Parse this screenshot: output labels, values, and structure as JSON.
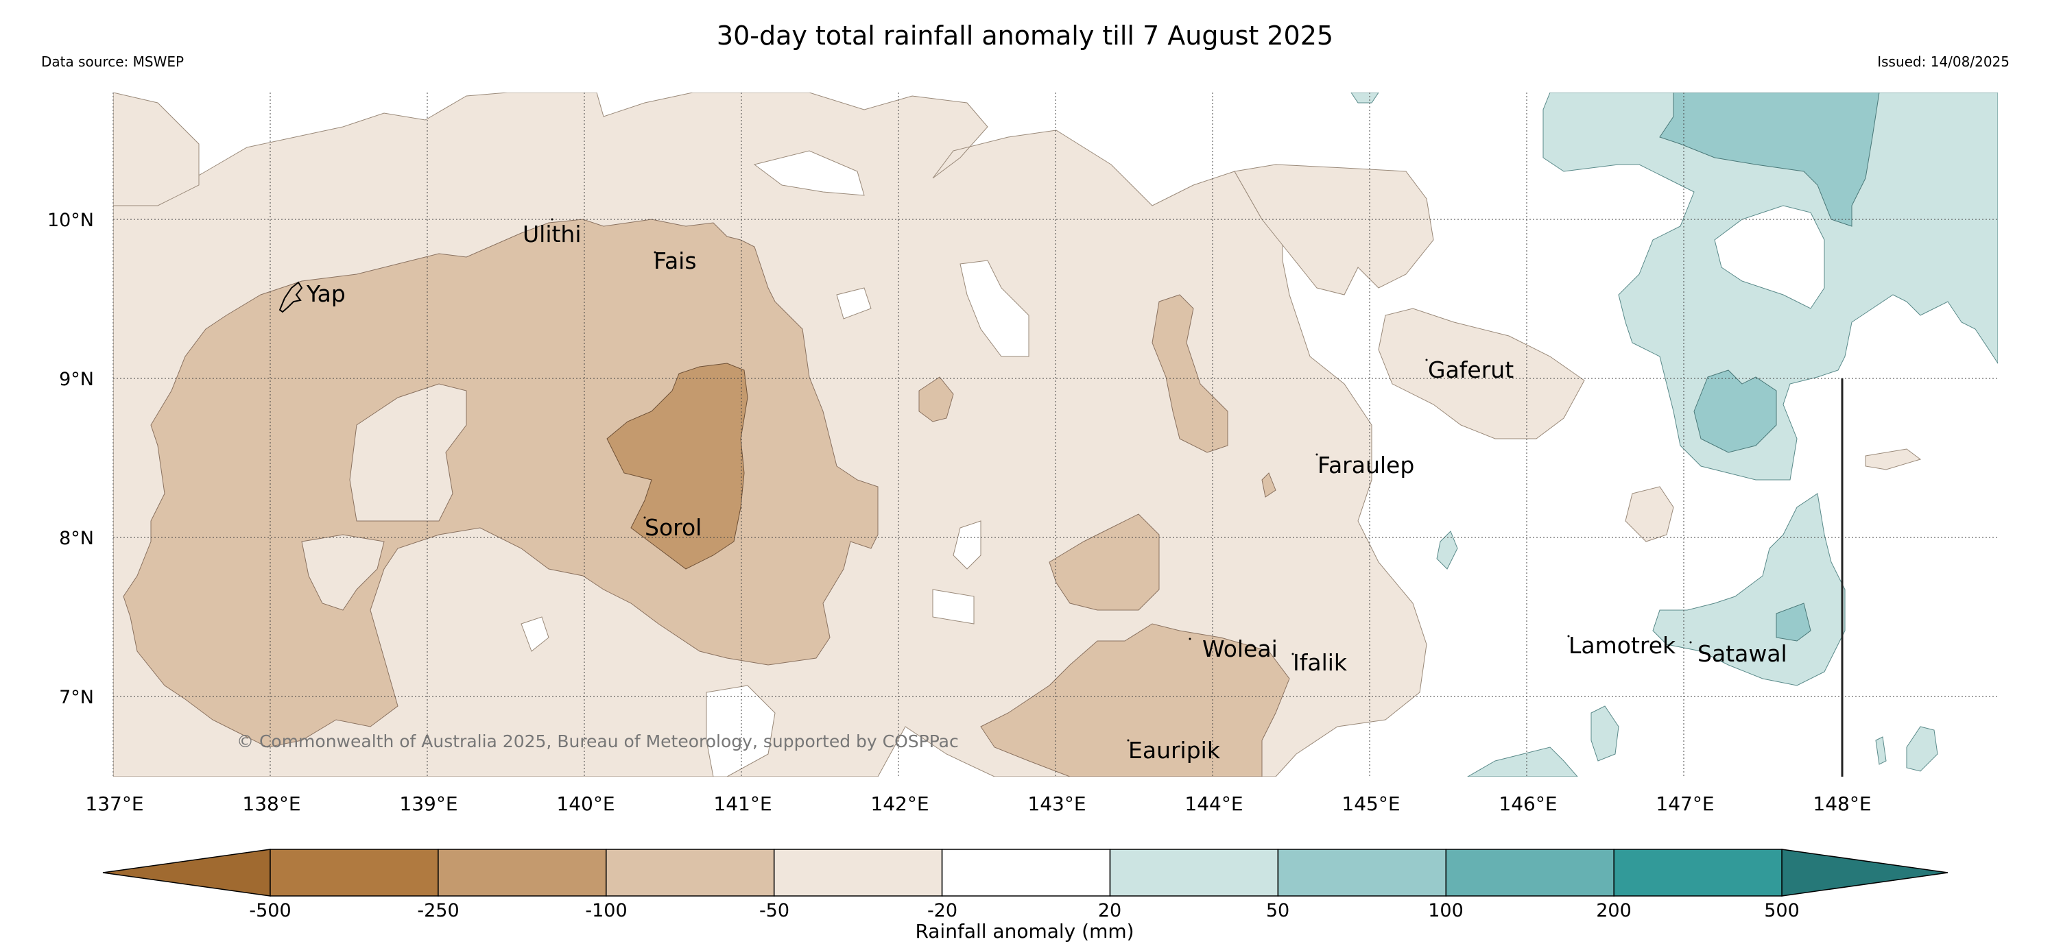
{
  "header": {
    "title": "30-day total rainfall anomaly till 7 August 2025",
    "source": "Data source: MSWEP",
    "issued": "Issued: 14/08/2025"
  },
  "map": {
    "latitude_labels": [
      "10°N",
      "9°N",
      "8°N",
      "7°N"
    ],
    "longitude_labels": [
      "137°E",
      "138°E",
      "139°E",
      "140°E",
      "141°E",
      "142°E",
      "143°E",
      "144°E",
      "145°E",
      "146°E",
      "147°E",
      "148°E"
    ],
    "places": [
      "Yap",
      "Ulithi",
      "Fais",
      "Gaferut",
      "Faraulep",
      "Sorol",
      "Woleai",
      "Ifalik",
      "Eauripik",
      "Lamotrek",
      "Satawal"
    ],
    "copyright": "© Commonwealth of Australia 2025, Bureau of Meteorology, supported by COSPPac"
  },
  "colorbar": {
    "title": "Rainfall anomaly (mm)",
    "ticks": [
      "-500",
      "-250",
      "-100",
      "-50",
      "-20",
      "20",
      "50",
      "100",
      "200",
      "500"
    ],
    "colors": [
      "#a06a30",
      "#b07a40",
      "#c49a6e",
      "#dcc2a8",
      "#f0e6dc",
      "#ffffff",
      "#cce4e2",
      "#98cacb",
      "#66b1b2",
      "#329a99",
      "#267878"
    ]
  }
}
